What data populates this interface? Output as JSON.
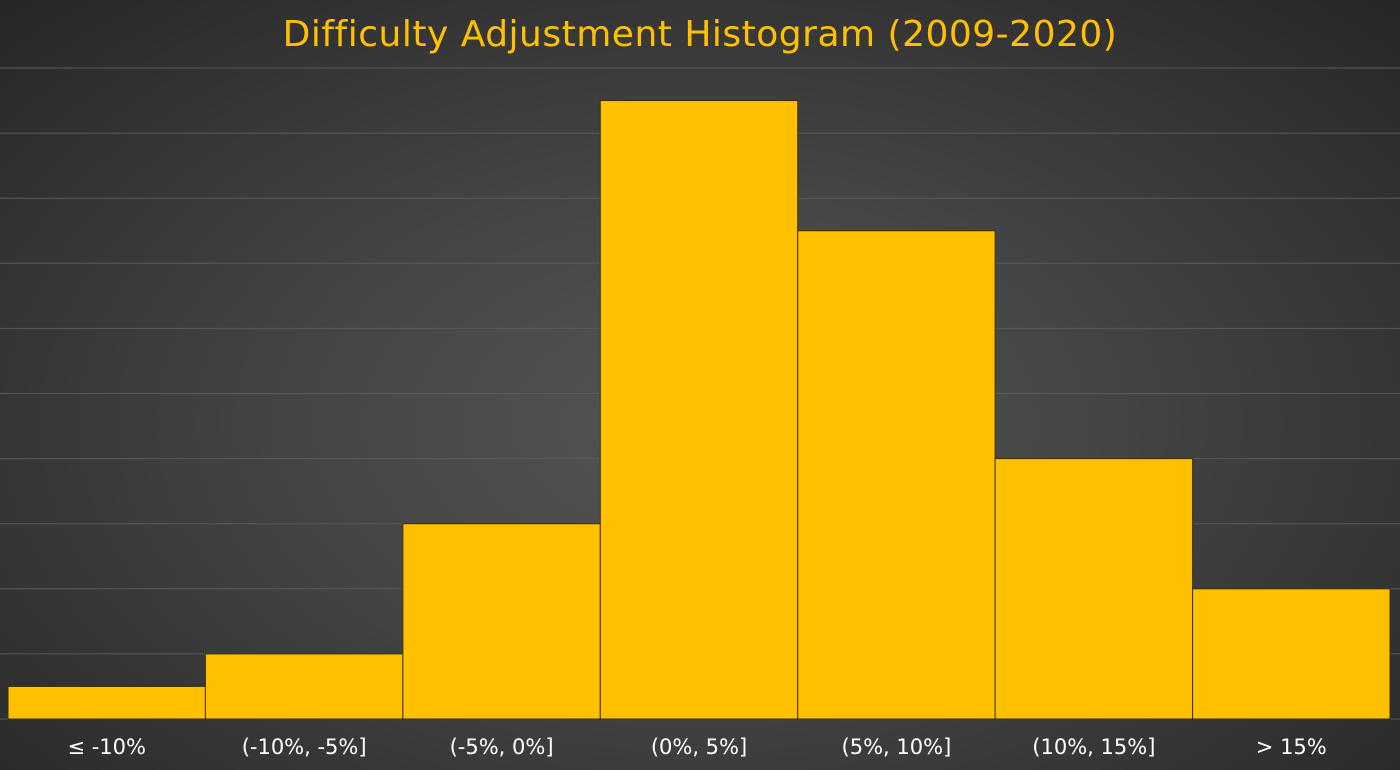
{
  "chart_data": {
    "type": "bar",
    "title": "Difficulty Adjustment Histogram (2009-2020)",
    "xlabel": "",
    "ylabel": "",
    "categories": [
      "≤ -10%",
      "(-10%, -5%]",
      "(-5%, 0%]",
      "(0%, 5%]",
      "(5%, 10%]",
      "(10%, 15%]",
      "> 15%"
    ],
    "values": [
      1,
      2,
      6,
      19,
      15,
      8,
      4
    ],
    "ylim": [
      0,
      20
    ],
    "grid": true,
    "bar_gap": 0,
    "colors": {
      "bar": "#FFC000",
      "bar_edge": "#3a3000",
      "title": "#FFC000",
      "tick_label": "#FFFFFF",
      "gridline": "#5a5a5a"
    }
  }
}
